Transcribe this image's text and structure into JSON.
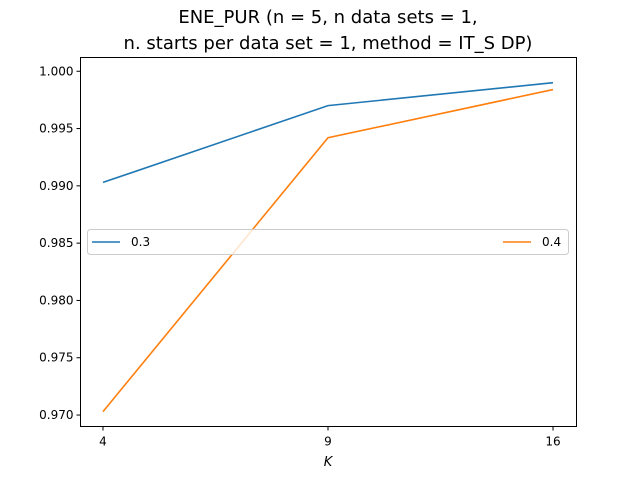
{
  "chart_data": {
    "type": "line",
    "title_line1": "ENE_PUR (n = 5, n data sets = 1,",
    "title_line2": "n. starts per data set = 1, method = IT_S DP)",
    "xlabel": "K",
    "ylabel": "",
    "categories": [
      "4",
      "9",
      "16"
    ],
    "y_ticks": [
      "0.970",
      "0.975",
      "0.980",
      "0.985",
      "0.990",
      "0.995",
      "1.000"
    ],
    "ylim": [
      0.969,
      1.0012
    ],
    "series": [
      {
        "name": "0.3",
        "color": "#1f77b4",
        "values": [
          0.9903,
          0.997,
          0.999
        ]
      },
      {
        "name": "0.4",
        "color": "#ff7f0e",
        "values": [
          0.9703,
          0.9942,
          0.9984
        ]
      }
    ],
    "legend_position": "center (spread across width)"
  }
}
